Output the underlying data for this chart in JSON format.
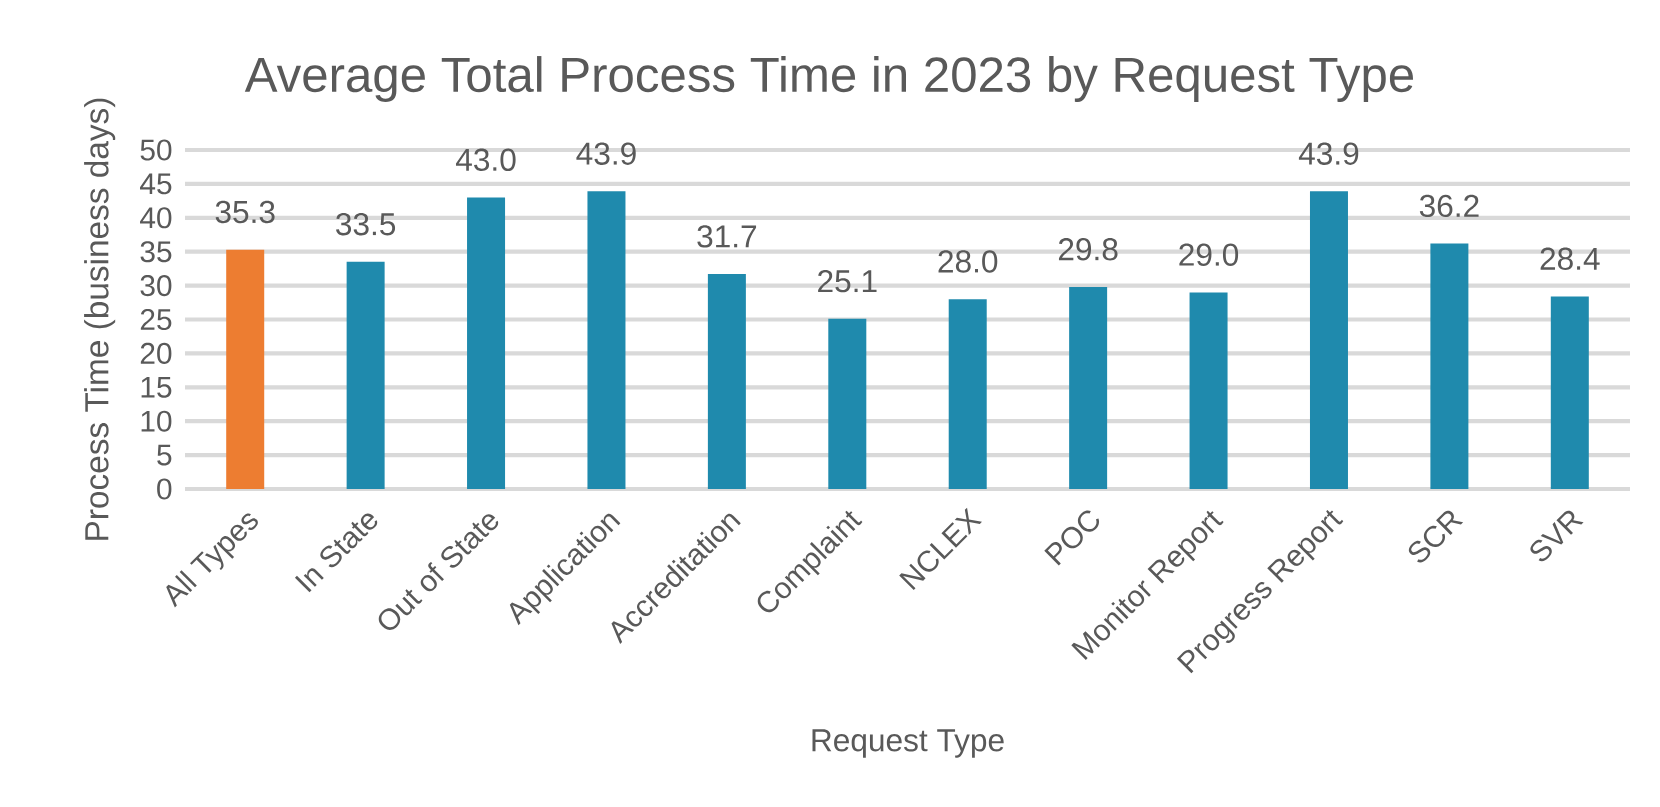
{
  "chart_data": {
    "type": "bar",
    "title": "Average Total Process Time in 2023 by Request Type",
    "xlabel": "Request Type",
    "ylabel": "Process Time (business days)",
    "categories": [
      "All Types",
      "In State",
      "Out of State",
      "Application",
      "Accreditation",
      "Complaint",
      "NCLEX",
      "POC",
      "Monitor Report",
      "Progress Report",
      "SCR",
      "SVR"
    ],
    "values": [
      35.3,
      33.5,
      43.0,
      43.9,
      31.7,
      25.1,
      28.0,
      29.8,
      29.0,
      43.9,
      36.2,
      28.4
    ],
    "value_labels": [
      "35.3",
      "33.5",
      "43.0",
      "43.9",
      "31.7",
      "25.1",
      "28.0",
      "29.8",
      "29.0",
      "43.9",
      "36.2",
      "28.4"
    ],
    "colors": [
      "#ed7d31",
      "#1f8aad",
      "#1f8aad",
      "#1f8aad",
      "#1f8aad",
      "#1f8aad",
      "#1f8aad",
      "#1f8aad",
      "#1f8aad",
      "#1f8aad",
      "#1f8aad",
      "#1f8aad"
    ],
    "ylim": [
      0,
      50
    ],
    "yticks": [
      0,
      5,
      10,
      15,
      20,
      25,
      30,
      35,
      40,
      45,
      50
    ],
    "grid": "y"
  }
}
